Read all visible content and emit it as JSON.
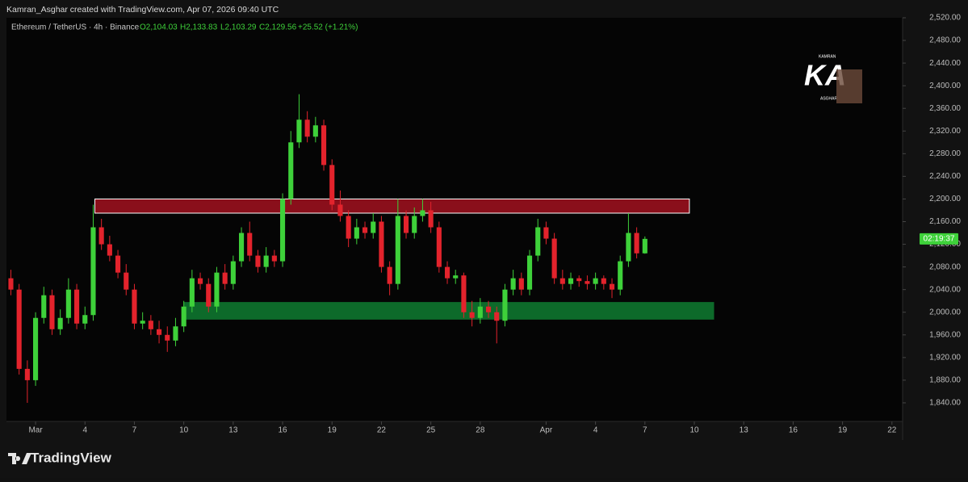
{
  "header": {
    "credit": "Kamran_Asghar created with TradingView.com, Apr 07, 2026 09:40 UTC",
    "symbol": "Ethereum / TetherUS · 4h · Binance",
    "o": "O2,104.03",
    "h": "H2,133.83",
    "l": "L2,103.29",
    "c": "C2,129.56",
    "change": "+25.52 (+1.21%)"
  },
  "logo": {
    "top": "KAMRAN",
    "big": "KA",
    "bottom": "ASGHAR"
  },
  "footer": {
    "brand": "TradingView"
  },
  "chart_data": {
    "type": "candlestick",
    "up_color": "#3ed13a",
    "down_color": "#e3232c",
    "xlim": [
      -0.67,
      53.5
    ],
    "xticks": [
      {
        "value": 1,
        "label": "Mar"
      },
      4,
      7,
      10,
      13,
      16,
      19,
      22,
      25,
      28,
      {
        "value": 32,
        "label": "Apr"
      },
      {
        "value": 35,
        "label": "4"
      },
      {
        "value": 38,
        "label": "7"
      },
      {
        "value": 41,
        "label": "10"
      },
      {
        "value": 44,
        "label": "13"
      },
      {
        "value": 47,
        "label": "16"
      },
      {
        "value": 50,
        "label": "19"
      },
      {
        "value": 53,
        "label": "22"
      }
    ],
    "ylim": [
      1810,
      2520
    ],
    "yticks": [
      {
        "value": 1840,
        "label": "1,840.00"
      },
      {
        "value": 1880,
        "label": "1,880.00"
      },
      {
        "value": 1920,
        "label": "1,920.00"
      },
      {
        "value": 1960,
        "label": "1,960.00"
      },
      {
        "value": 2000,
        "label": "2,000.00"
      },
      {
        "value": 2040,
        "label": "2,040.00"
      },
      {
        "value": 2080,
        "label": "2,080.00"
      },
      {
        "value": 2120,
        "label": "2,120.00"
      },
      {
        "value": 2160,
        "label": "2,160.00"
      },
      {
        "value": 2200,
        "label": "2,200.00"
      },
      {
        "value": 2240,
        "label": "2,240.00"
      },
      {
        "value": 2280,
        "label": "2,280.00"
      },
      {
        "value": 2320,
        "label": "2,320.00"
      },
      {
        "value": 2360,
        "label": "2,360.00"
      },
      {
        "value": 2400,
        "label": "2,400.00"
      },
      {
        "value": 2440,
        "label": "2,440.00"
      },
      {
        "value": 2480,
        "label": "2,480.00"
      },
      {
        "value": 2520,
        "label": "2,520.00"
      }
    ],
    "grid": false,
    "x": [
      -0.5,
      0,
      0.5,
      1,
      1.5,
      2,
      2.5,
      3,
      3.5,
      4,
      4.5,
      5,
      5.5,
      6,
      6.5,
      7,
      7.5,
      8,
      8.5,
      9,
      9.5,
      10,
      10.5,
      11,
      11.5,
      12,
      12.5,
      13,
      13.5,
      14,
      14.5,
      15,
      15.5,
      16,
      16.5,
      17,
      17.5,
      18,
      18.5,
      19,
      19.5,
      20,
      20.5,
      21,
      21.5,
      22,
      22.5,
      23,
      23.5,
      24,
      24.5,
      25,
      25.5,
      26,
      26.5,
      27,
      27.5,
      28,
      28.5,
      29,
      29.5,
      30,
      30.5,
      31,
      31.5,
      32,
      32.5,
      33,
      33.5,
      34,
      34.5,
      35,
      35.5,
      36,
      36.5,
      37,
      37.5,
      38
    ],
    "open": [
      2060,
      2040,
      1900,
      1880,
      1990,
      2030,
      1970,
      1990,
      2040,
      1980,
      1995,
      2150,
      2120,
      2100,
      2070,
      2040,
      1980,
      1985,
      1970,
      1960,
      1950,
      1975,
      2010,
      2060,
      2050,
      2010,
      2070,
      2050,
      2090,
      2140,
      2100,
      2080,
      2100,
      2090,
      2200,
      2300,
      2340,
      2310,
      2330,
      2260,
      2190,
      2170,
      2130,
      2150,
      2140,
      2160,
      2080,
      2050,
      2170,
      2140,
      2170,
      2180,
      2150,
      2080,
      2060,
      2065,
      2000,
      1990,
      2010,
      2000,
      1985,
      2040,
      2060,
      2040,
      2100,
      2150,
      2130,
      2060,
      2050,
      2060,
      2055,
      2050,
      2060,
      2050,
      2040,
      2090,
      2140,
      2104.03
    ],
    "high": [
      2075,
      2050,
      1915,
      2000,
      2045,
      2040,
      2005,
      2060,
      2050,
      2010,
      2190,
      2165,
      2135,
      2110,
      2085,
      2050,
      2000,
      1995,
      1985,
      1975,
      1990,
      2020,
      2075,
      2070,
      2060,
      2080,
      2085,
      2100,
      2150,
      2160,
      2110,
      2115,
      2110,
      2210,
      2320,
      2385,
      2355,
      2345,
      2340,
      2270,
      2215,
      2180,
      2165,
      2160,
      2175,
      2170,
      2090,
      2200,
      2180,
      2185,
      2200,
      2195,
      2160,
      2090,
      2075,
      2070,
      2020,
      2025,
      2020,
      2010,
      2050,
      2075,
      2070,
      2110,
      2165,
      2160,
      2140,
      2075,
      2070,
      2065,
      2065,
      2070,
      2065,
      2060,
      2100,
      2175,
      2150,
      2133.83
    ],
    "low": [
      2030,
      1890,
      1840,
      1870,
      1980,
      1960,
      1960,
      1980,
      1970,
      1970,
      1985,
      2110,
      2090,
      2060,
      2030,
      1970,
      1970,
      1960,
      1945,
      1930,
      1940,
      1965,
      2000,
      2040,
      2000,
      2000,
      2040,
      2040,
      2080,
      2090,
      2070,
      2070,
      2080,
      2080,
      2190,
      2290,
      2300,
      2300,
      2250,
      2180,
      2160,
      2115,
      2120,
      2130,
      2130,
      2070,
      2030,
      2040,
      2130,
      2130,
      2160,
      2140,
      2070,
      2050,
      2050,
      1990,
      1975,
      1980,
      1990,
      1945,
      1975,
      2030,
      2030,
      2030,
      2090,
      2120,
      2050,
      2040,
      2040,
      2045,
      2040,
      2040,
      2040,
      2025,
      2030,
      2080,
      2095,
      2103.29
    ],
    "close": [
      2040,
      1900,
      1880,
      1990,
      2030,
      1970,
      1990,
      2040,
      1980,
      1995,
      2150,
      2120,
      2100,
      2070,
      2040,
      1980,
      1985,
      1970,
      1960,
      1950,
      1975,
      2010,
      2060,
      2050,
      2010,
      2070,
      2050,
      2090,
      2140,
      2100,
      2080,
      2100,
      2090,
      2200,
      2300,
      2340,
      2310,
      2330,
      2260,
      2190,
      2170,
      2130,
      2150,
      2140,
      2160,
      2080,
      2050,
      2170,
      2140,
      2170,
      2180,
      2150,
      2080,
      2060,
      2065,
      2000,
      1990,
      2010,
      2000,
      1985,
      2040,
      2060,
      2040,
      2100,
      2150,
      2130,
      2060,
      2050,
      2060,
      2055,
      2050,
      2060,
      2050,
      2040,
      2090,
      2140,
      2104.03,
      2129.56
    ],
    "zones": [
      {
        "from": 2175,
        "to": 2200,
        "x0": 4.6,
        "x1": 40.7,
        "color": "#8a0f1b"
      },
      {
        "from": 1987,
        "to": 2018,
        "x0": 10.0,
        "x1": 42.2,
        "color": "#0d6a2a"
      }
    ],
    "countdown_label": "02:19:37"
  }
}
